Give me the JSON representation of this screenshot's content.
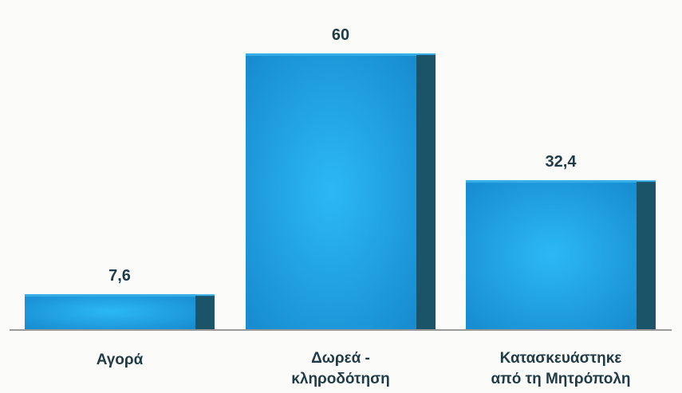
{
  "chart_data": {
    "type": "bar",
    "categories": [
      "Αγορά",
      "Δωρεά - κληροδότηση",
      "Κατασκευάστηκε από τη Μητρόπολη"
    ],
    "category_lines": [
      [
        "Αγορά"
      ],
      [
        "Δωρεά -",
        "κληροδότηση"
      ],
      [
        "Κατασκευάστηκε",
        "από τη Μητρόπολη"
      ]
    ],
    "values": [
      7.6,
      60,
      32.4
    ],
    "value_labels": [
      "7,6",
      "60",
      "32,4"
    ],
    "title": "",
    "xlabel": "",
    "ylabel": "",
    "ylim": [
      0,
      60
    ],
    "grid": false,
    "legend": "none",
    "colors": {
      "bar_front": "#1a9be0",
      "bar_front_light": "#2fb5f2",
      "bar_side": "#1b5468",
      "bar_top": "#35aee8",
      "baseline": "#9a9a9a",
      "text": "#1f3b45"
    }
  }
}
